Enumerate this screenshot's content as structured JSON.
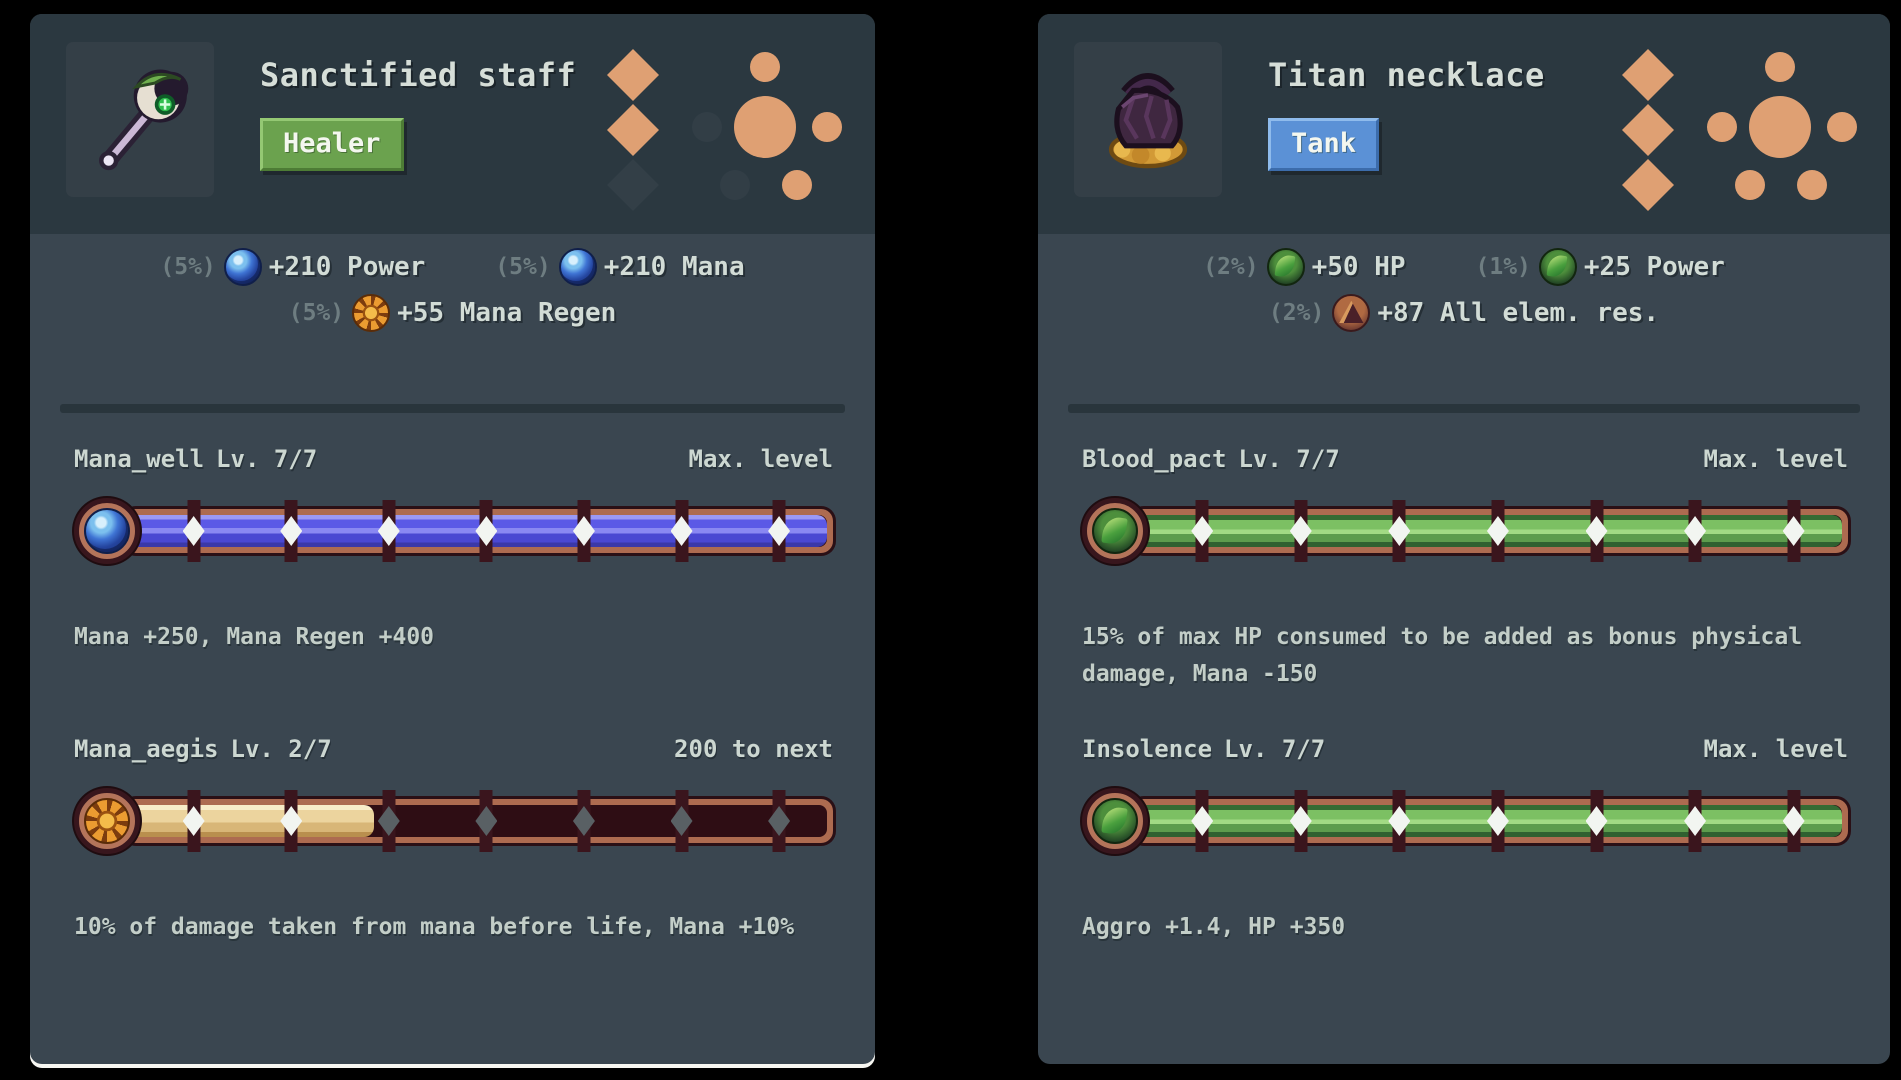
{
  "colors": {
    "background": "#000000",
    "card_header": "#2b3840",
    "card_body": "#3a4650",
    "rarity_orange": "#dfa073",
    "badge_green": "#6ba24e",
    "badge_blue": "#5b91d6",
    "bar_fill_blue": "#4b49de",
    "bar_fill_gold": "#ecd49e",
    "bar_fill_green": "#7cc063"
  },
  "cards": [
    {
      "title": "Sanctified staff",
      "badge": {
        "label": "Healer",
        "variant": "green"
      },
      "item_icon": "staff",
      "rarity": {
        "diamonds": [
          true,
          true,
          false
        ],
        "circles": {
          "center": true,
          "satellites": [
            true,
            false,
            true,
            false,
            true
          ]
        }
      },
      "stats": [
        {
          "chance": "(5%)",
          "icon": "mana-orb",
          "label": "+210 Power"
        },
        {
          "chance": "(5%)",
          "icon": "mana-orb",
          "label": "+210 Mana"
        },
        {
          "chance": "(5%)",
          "icon": "sun",
          "label": "+55 Mana Regen"
        }
      ],
      "skills": [
        {
          "name": "Mana_well",
          "level": "Lv. 7/7",
          "status": "Max. level",
          "icon": "mana-orb",
          "fill": "blue",
          "fill_pct": 100,
          "progress": {
            "level": 7,
            "max": 7
          },
          "description": "Mana +250, Mana Regen +400"
        },
        {
          "name": "Mana_aegis",
          "level": "Lv. 2/7",
          "status": "200 to next",
          "icon": "sun",
          "fill": "gold",
          "fill_pct": 35,
          "progress": {
            "level": 2,
            "max": 7
          },
          "description": "10% of damage taken from mana before life, Mana +10%"
        }
      ]
    },
    {
      "title": "Titan necklace",
      "badge": {
        "label": "Tank",
        "variant": "blue"
      },
      "item_icon": "necklace",
      "rarity": {
        "diamonds": [
          true,
          true,
          true
        ],
        "circles": {
          "center": true,
          "satellites": [
            true,
            true,
            true,
            true,
            true
          ]
        }
      },
      "stats": [
        {
          "chance": "(2%)",
          "icon": "leaf",
          "label": "+50 HP"
        },
        {
          "chance": "(1%)",
          "icon": "leaf",
          "label": "+25 Power"
        },
        {
          "chance": "(2%)",
          "icon": "mountain",
          "label": "+87 All elem. res."
        }
      ],
      "skills": [
        {
          "name": "Blood_pact",
          "level": "Lv. 7/7",
          "status": "Max. level",
          "icon": "leaf",
          "fill": "green",
          "fill_pct": 100,
          "progress": {
            "level": 7,
            "max": 7
          },
          "description": "15% of max HP consumed to be added as bonus physical damage, Mana -150"
        },
        {
          "name": "Insolence",
          "level": "Lv. 7/7",
          "status": "Max. level",
          "icon": "leaf",
          "fill": "green",
          "fill_pct": 100,
          "progress": {
            "level": 7,
            "max": 7
          },
          "description": "Aggro +1.4, HP +350"
        }
      ]
    }
  ]
}
